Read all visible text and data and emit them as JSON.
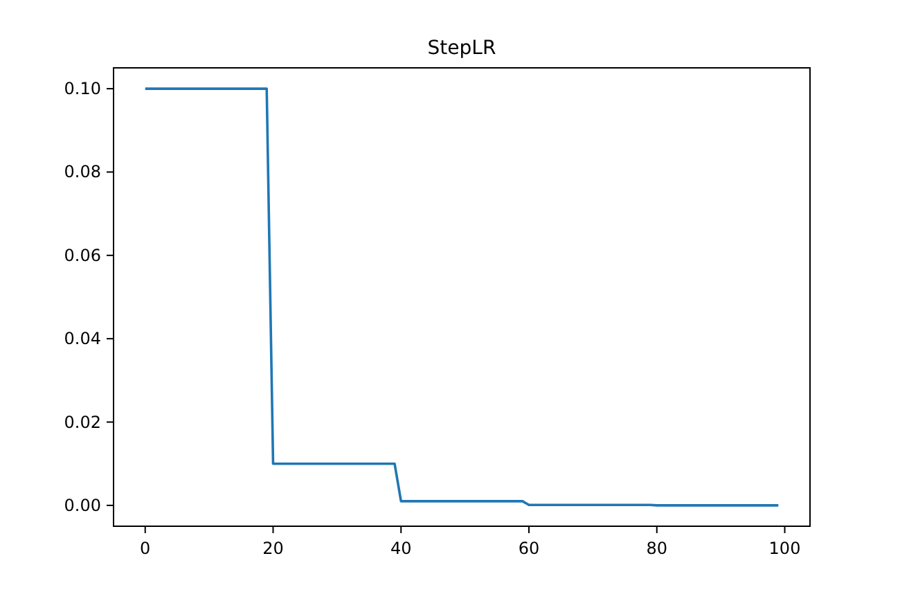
{
  "chart_data": {
    "type": "line",
    "title": "StepLR",
    "series": [
      {
        "color": "#1f77b4",
        "x": [
          0,
          19,
          20,
          39,
          40,
          59,
          60,
          79,
          80,
          99
        ],
        "values": [
          0.1,
          0.1,
          0.01,
          0.01,
          0.001,
          0.001,
          0.0001,
          0.0001,
          1e-05,
          1e-05
        ]
      }
    ],
    "xlim": [
      -4.95,
      103.95
    ],
    "ylim": [
      -0.005,
      0.105
    ],
    "xticks": [
      0,
      20,
      40,
      60,
      80,
      100
    ],
    "yticks": [
      {
        "value": 0,
        "label": "0.00"
      },
      {
        "value": 0.02,
        "label": "0.02"
      },
      {
        "value": 0.04,
        "label": "0.04"
      },
      {
        "value": 0.06,
        "label": "0.06"
      },
      {
        "value": 0.08,
        "label": "0.08"
      },
      {
        "value": 0.1,
        "label": "0.10"
      }
    ],
    "grid": false,
    "marker": "none",
    "line_style": "solid"
  }
}
